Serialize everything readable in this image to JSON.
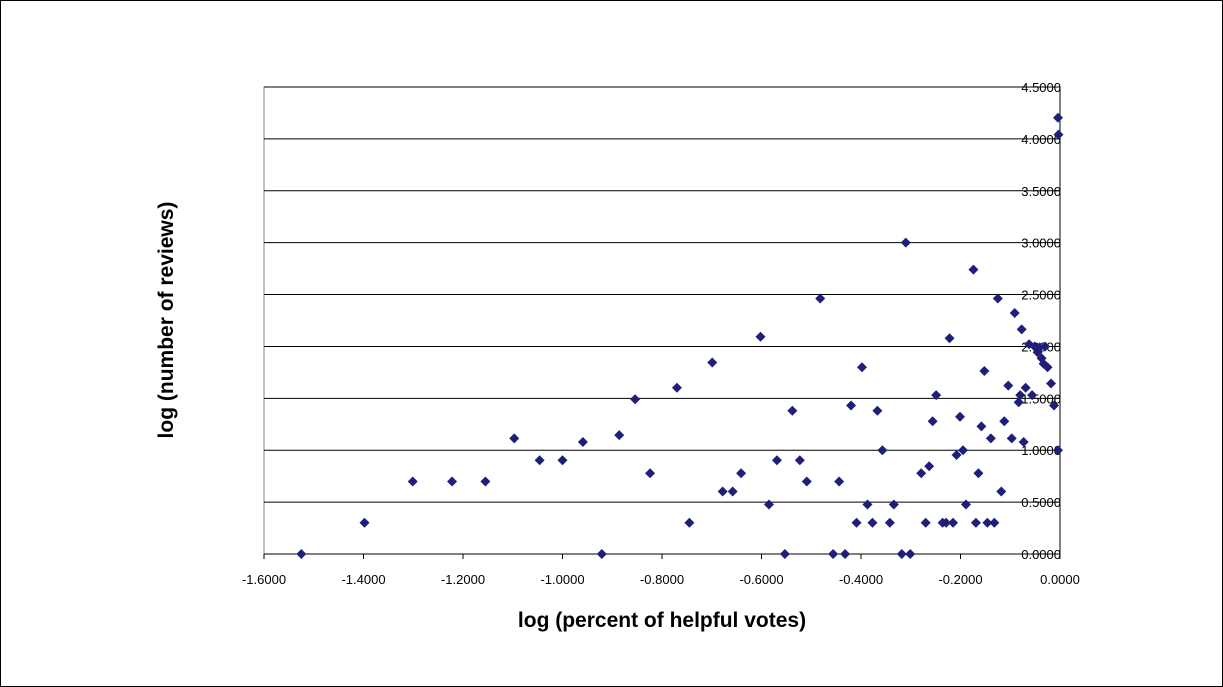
{
  "chart_data": {
    "type": "scatter",
    "title": "",
    "xlabel": "log (percent of helpful votes)",
    "ylabel": "log (number of reviews)",
    "xlim": [
      -1.6,
      0.0
    ],
    "ylim": [
      0.0,
      4.5
    ],
    "xticks": [
      "-1.6000",
      "-1.4000",
      "-1.2000",
      "-1.0000",
      "-0.8000",
      "-0.6000",
      "-0.4000",
      "-0.2000",
      "0.0000"
    ],
    "yticks": [
      "0.0000",
      "0.5000",
      "1.0000",
      "1.5000",
      "2.0000",
      "2.5000",
      "3.0000",
      "3.5000",
      "4.0000",
      "4.5000"
    ],
    "grid": "horizontal",
    "legend": "none",
    "marker": "diamond",
    "color": "#1f1f7a",
    "points": [
      [
        -1.525,
        0.0
      ],
      [
        -1.398,
        0.301
      ],
      [
        -1.301,
        0.699
      ],
      [
        -1.222,
        0.699
      ],
      [
        -1.155,
        0.699
      ],
      [
        -1.097,
        1.114
      ],
      [
        -1.046,
        0.903
      ],
      [
        -1.0,
        0.903
      ],
      [
        -0.959,
        1.079
      ],
      [
        -0.921,
        0.0
      ],
      [
        -0.886,
        1.146
      ],
      [
        -0.854,
        1.491
      ],
      [
        -0.824,
        0.778
      ],
      [
        -0.77,
        1.602
      ],
      [
        -0.745,
        0.301
      ],
      [
        -0.699,
        1.845
      ],
      [
        -0.678,
        0.602
      ],
      [
        -0.658,
        0.602
      ],
      [
        -0.641,
        0.778
      ],
      [
        -0.602,
        2.093
      ],
      [
        -0.585,
        0.477
      ],
      [
        -0.569,
        0.903
      ],
      [
        -0.553,
        0.0
      ],
      [
        -0.538,
        1.38
      ],
      [
        -0.523,
        0.903
      ],
      [
        -0.509,
        0.699
      ],
      [
        -0.482,
        2.462
      ],
      [
        -0.456,
        0.0
      ],
      [
        -0.444,
        0.699
      ],
      [
        -0.432,
        0.0
      ],
      [
        -0.42,
        1.431
      ],
      [
        -0.409,
        0.301
      ],
      [
        -0.398,
        1.799
      ],
      [
        -0.387,
        0.477
      ],
      [
        -0.377,
        0.301
      ],
      [
        -0.367,
        1.38
      ],
      [
        -0.357,
        1.0
      ],
      [
        -0.342,
        0.301
      ],
      [
        -0.334,
        0.477
      ],
      [
        -0.318,
        0.0
      ],
      [
        -0.31,
        3.0
      ],
      [
        -0.301,
        0.0
      ],
      [
        -0.279,
        0.778
      ],
      [
        -0.27,
        0.301
      ],
      [
        -0.263,
        0.845
      ],
      [
        -0.256,
        1.279
      ],
      [
        -0.249,
        1.531
      ],
      [
        -0.236,
        0.301
      ],
      [
        -0.229,
        0.301
      ],
      [
        -0.222,
        2.079
      ],
      [
        -0.215,
        0.301
      ],
      [
        -0.208,
        0.954
      ],
      [
        -0.201,
        1.322
      ],
      [
        -0.195,
        1.0
      ],
      [
        -0.189,
        0.477
      ],
      [
        -0.174,
        2.74
      ],
      [
        -0.169,
        0.301
      ],
      [
        -0.164,
        0.778
      ],
      [
        -0.158,
        1.23
      ],
      [
        -0.152,
        1.763
      ],
      [
        -0.146,
        0.301
      ],
      [
        -0.139,
        1.114
      ],
      [
        -0.132,
        0.301
      ],
      [
        -0.125,
        2.462
      ],
      [
        -0.118,
        0.602
      ],
      [
        -0.112,
        1.279
      ],
      [
        -0.104,
        1.623
      ],
      [
        -0.097,
        1.114
      ],
      [
        -0.091,
        2.322
      ],
      [
        -0.083,
        1.462
      ],
      [
        -0.08,
        1.531
      ],
      [
        -0.077,
        2.164
      ],
      [
        -0.073,
        1.079
      ],
      [
        -0.069,
        1.602
      ],
      [
        -0.062,
        2.021
      ],
      [
        -0.056,
        1.531
      ],
      [
        -0.051,
        2.0
      ],
      [
        -0.045,
        1.944
      ],
      [
        -0.041,
        1.991
      ],
      [
        -0.037,
        1.886
      ],
      [
        -0.033,
        1.833
      ],
      [
        -0.03,
        2.0
      ],
      [
        -0.025,
        1.799
      ],
      [
        -0.018,
        1.643
      ],
      [
        -0.012,
        1.431
      ],
      [
        -0.004,
        4.204
      ],
      [
        -0.003,
        4.041
      ],
      [
        -0.004,
        1.0
      ]
    ]
  }
}
